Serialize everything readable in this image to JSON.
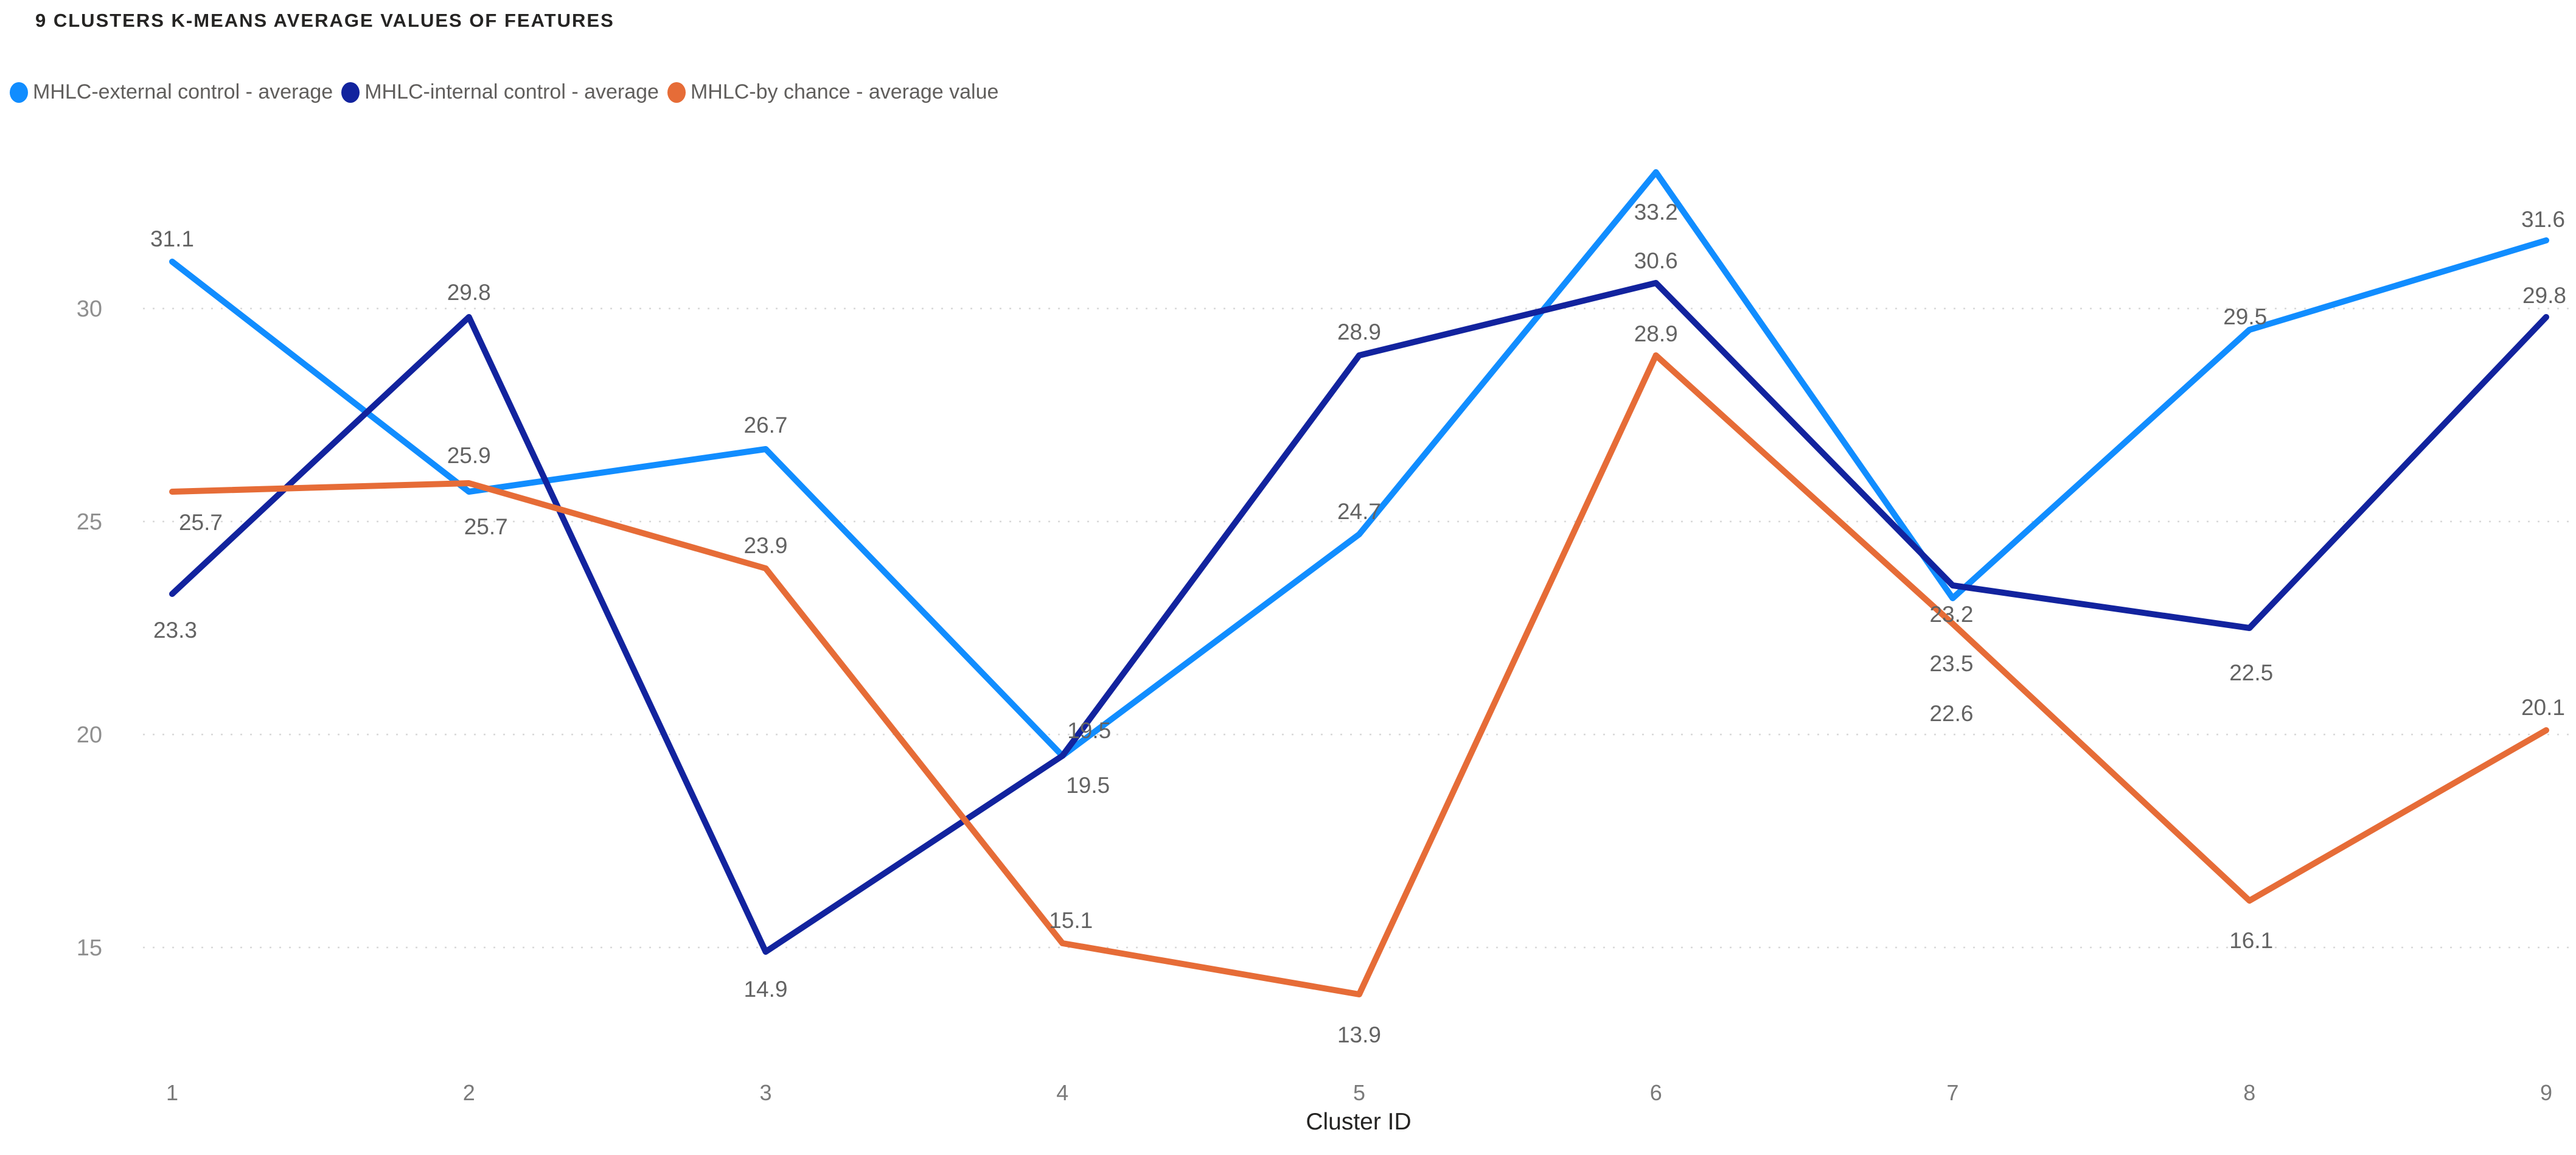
{
  "title": "9 CLUSTERS K-MEANS AVERAGE VALUES OF FEATURES",
  "legend": {
    "items": [
      {
        "id": "external",
        "label": "MHLC-external control - average",
        "color": "#118DFF"
      },
      {
        "id": "internal",
        "label": "MHLC-internal control - average",
        "color": "#12239E"
      },
      {
        "id": "chance",
        "label": "MHLC-by chance - average value",
        "color": "#E66C37"
      }
    ]
  },
  "axes": {
    "x_title": "Cluster ID",
    "x_ticks": [
      "1",
      "2",
      "3",
      "4",
      "5",
      "6",
      "7",
      "8",
      "9"
    ],
    "y_ticks": [
      15,
      20,
      25,
      30
    ]
  },
  "colors": {
    "grid": "#D8D8D8",
    "data_label": "#636363",
    "axis_label": "#8F8F8F",
    "title": "#252423"
  },
  "chart_data": {
    "type": "line",
    "title": "9 CLUSTERS K-MEANS AVERAGE VALUES OF FEATURES",
    "xlabel": "Cluster ID",
    "ylabel": "",
    "categories": [
      1,
      2,
      3,
      4,
      5,
      6,
      7,
      8,
      9
    ],
    "ylim": [
      13,
      34
    ],
    "yticks": [
      15,
      20,
      25,
      30
    ],
    "grid": "horizontal-dotted",
    "legend_position": "top-left",
    "data_labels": true,
    "series": [
      {
        "id": "external",
        "name": "MHLC-external control - average",
        "color": "#118DFF",
        "values": [
          31.1,
          25.7,
          26.7,
          19.5,
          24.7,
          33.2,
          23.2,
          29.5,
          31.6
        ]
      },
      {
        "id": "internal",
        "name": "MHLC-internal control - average",
        "color": "#12239E",
        "values": [
          23.3,
          29.8,
          14.9,
          19.5,
          28.9,
          30.6,
          23.5,
          22.5,
          29.8
        ]
      },
      {
        "id": "chance",
        "name": "MHLC-by chance - average value",
        "color": "#E66C37",
        "values": [
          25.7,
          25.9,
          23.9,
          15.1,
          13.9,
          28.9,
          22.6,
          16.1,
          20.1
        ]
      }
    ]
  }
}
